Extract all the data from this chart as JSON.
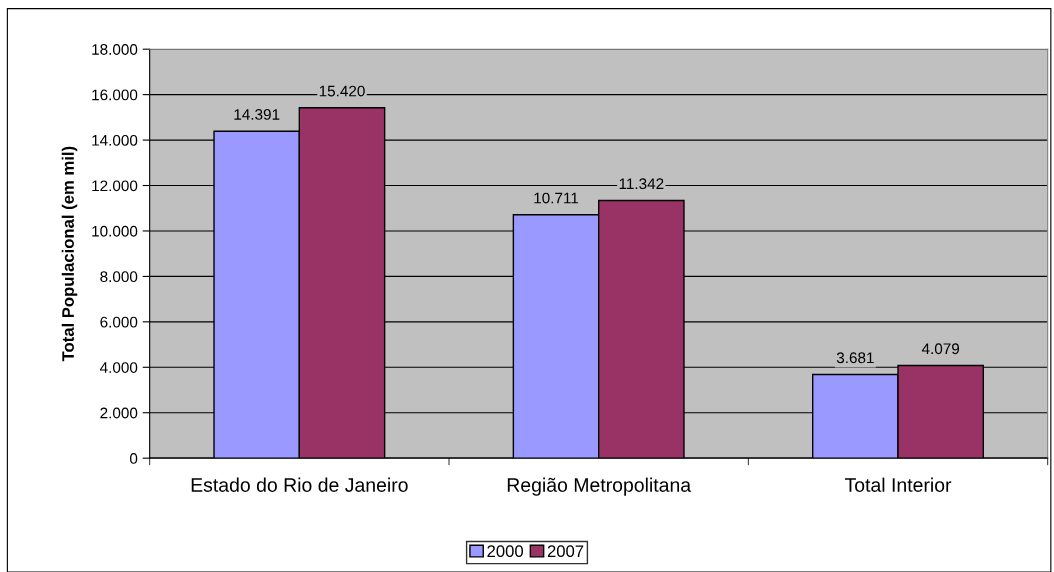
{
  "chart_data": {
    "type": "bar",
    "ylabel": "Total Populacional (em mil)",
    "categories": [
      "Estado do Rio de Janeiro",
      "Região Metropolitana",
      "Total Interior"
    ],
    "series": [
      {
        "name": "2000",
        "color": "#9999ff",
        "values": [
          14391,
          10711,
          3681
        ],
        "value_labels": [
          "14.391",
          "10.711",
          "3.681"
        ]
      },
      {
        "name": "2007",
        "color": "#993366",
        "values": [
          15420,
          11342,
          4079
        ],
        "value_labels": [
          "15.420",
          "11.342",
          "4.079"
        ]
      }
    ],
    "ylim": [
      0,
      18000
    ],
    "yticks": [
      0,
      {
        "value": 2000,
        "label": "2.000"
      },
      {
        "value": 4000,
        "label": "4.000"
      },
      {
        "value": 6000,
        "label": "6.000"
      },
      {
        "value": 8000,
        "label": "8.000"
      },
      {
        "value": 10000,
        "label": "10.000"
      },
      {
        "value": 12000,
        "label": "12.000"
      },
      {
        "value": 14000,
        "label": "14.000"
      },
      {
        "value": 16000,
        "label": "16.000"
      },
      {
        "value": 18000,
        "label": "18.000"
      }
    ],
    "grid": "y",
    "legend": "bottom"
  }
}
